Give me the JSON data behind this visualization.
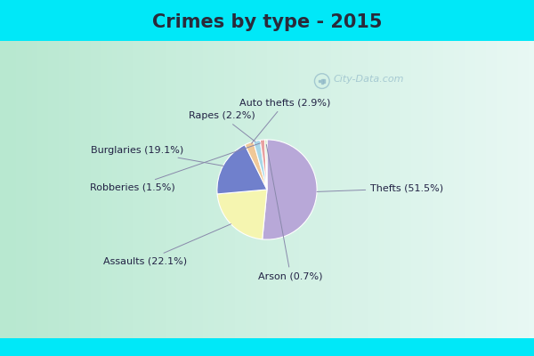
{
  "title": "Crimes by type - 2015",
  "title_fontsize": 15,
  "title_fontweight": "bold",
  "title_color": "#2a2a3a",
  "labels": [
    "Thefts",
    "Assaults",
    "Burglaries",
    "Auto thefts",
    "Rapes",
    "Robberies",
    "Arson"
  ],
  "sizes": [
    51.5,
    22.1,
    19.1,
    2.9,
    2.2,
    1.5,
    0.7
  ],
  "colors": [
    "#b8a8d8",
    "#f5f5b0",
    "#7080cc",
    "#f0c898",
    "#a8d8e8",
    "#e8a0a0",
    "#d8e8c0"
  ],
  "label_texts": [
    "Thefts (51.5%)",
    "Assaults (22.1%)",
    "Burglaries (19.1%)",
    "Auto thefts (2.9%)",
    "Rapes (2.2%)",
    "Robberies (1.5%)",
    "Arson (0.7%)"
  ],
  "bg_cyan": "#00e8f8",
  "bg_green_left": "#b8e8d0",
  "bg_white_right": "#e8f8f4",
  "watermark": "City-Data.com",
  "startangle": 90,
  "label_fontsize": 8,
  "label_color": "#222244",
  "arrow_color": "#8888aa",
  "title_bar_height": 0.115,
  "bottom_bar_height": 0.05
}
